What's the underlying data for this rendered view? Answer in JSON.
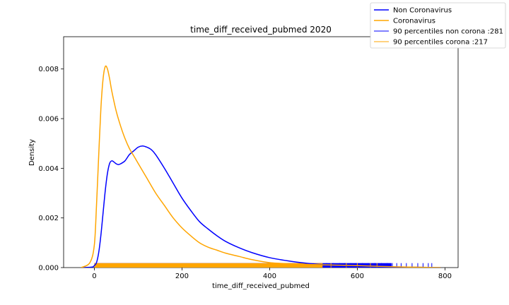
{
  "chart_data": {
    "type": "line",
    "title": "time_diff_received_pubmed 2020",
    "xlabel": "time_diff_received_pubmed",
    "ylabel": "Density",
    "xlim": [
      -70,
      830
    ],
    "ylim": [
      0,
      0.0093
    ],
    "xticks": [
      0,
      200,
      400,
      600,
      800
    ],
    "yticks": [
      0.0,
      0.002,
      0.004,
      0.006,
      0.008
    ],
    "ytick_labels": [
      "0.000",
      "0.002",
      "0.004",
      "0.006",
      "0.008"
    ],
    "grid": false,
    "legend_position": "upper-right-outside",
    "colors": {
      "non_corona": "#0000ff",
      "corona": "#ffa500"
    },
    "series": [
      {
        "name": "Non Coronavirus",
        "color": "#0000ff",
        "x": [
          -25,
          -5,
          0,
          5,
          10,
          15,
          20,
          25,
          30,
          35,
          40,
          45,
          50,
          55,
          60,
          70,
          80,
          90,
          100,
          110,
          120,
          130,
          140,
          160,
          180,
          200,
          220,
          240,
          260,
          280,
          300,
          330,
          360,
          400,
          450,
          500,
          550,
          600,
          650,
          700,
          750,
          790
        ],
        "y": [
          0,
          2e-05,
          8e-05,
          0.0002,
          0.0006,
          0.0013,
          0.0022,
          0.0031,
          0.0038,
          0.0042,
          0.0043,
          0.00425,
          0.00418,
          0.00415,
          0.00418,
          0.0043,
          0.00455,
          0.0047,
          0.00485,
          0.0049,
          0.00485,
          0.00475,
          0.00455,
          0.004,
          0.0034,
          0.0028,
          0.0023,
          0.00185,
          0.00155,
          0.00128,
          0.00105,
          0.0008,
          0.0006,
          0.0004,
          0.00025,
          0.00015,
          9e-05,
          5e-05,
          3e-05,
          2e-05,
          1e-05,
          0
        ]
      },
      {
        "name": "Coronavirus",
        "color": "#ffa500",
        "x": [
          -30,
          -10,
          0,
          5,
          10,
          15,
          20,
          25,
          30,
          35,
          40,
          50,
          60,
          70,
          80,
          90,
          100,
          120,
          140,
          160,
          180,
          200,
          220,
          240,
          260,
          280,
          300,
          330,
          360,
          400,
          450,
          500,
          550,
          600,
          650,
          700,
          750,
          790
        ],
        "y": [
          0,
          0.0002,
          0.0009,
          0.0025,
          0.0045,
          0.0064,
          0.0076,
          0.0081,
          0.008,
          0.0076,
          0.0071,
          0.0063,
          0.0057,
          0.0052,
          0.0048,
          0.0045,
          0.0042,
          0.0036,
          0.003,
          0.0025,
          0.002,
          0.0016,
          0.00128,
          0.001,
          0.00082,
          0.0007,
          0.00058,
          0.00045,
          0.00032,
          0.0002,
          0.00015,
          0.00012,
          0.0001,
          8e-05,
          5e-05,
          3e-05,
          1e-05,
          0
        ]
      }
    ],
    "percentile_lines": [
      {
        "name": "90 percentiles non corona :281",
        "value": 281,
        "color": "#0000ff"
      },
      {
        "name": "90 percentiles corona :217",
        "value": 217,
        "color": "#ffa500"
      }
    ],
    "rug": {
      "orange_range": [
        0,
        650
      ],
      "blue_range": [
        0,
        775
      ],
      "blue_sparse_ticks": [
        500,
        515,
        530,
        545,
        560,
        572,
        585,
        598,
        612,
        625,
        640,
        655,
        668,
        680,
        690,
        700,
        712,
        725,
        738,
        750,
        762,
        770
      ],
      "orange_sparse_ticks": [
        520,
        540,
        575,
        600,
        630,
        645
      ],
      "height_density": 0.00018
    }
  }
}
